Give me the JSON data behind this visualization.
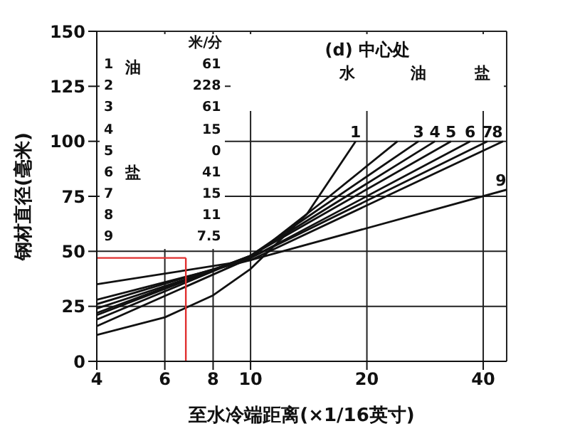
{
  "chart_data": {
    "type": "line",
    "xlabel": "至水冷端距离(×1/16英寸)",
    "ylabel": "钢材直径(毫米)",
    "log": "x",
    "xlim": [
      4,
      46
    ],
    "xticks": [
      4,
      6,
      8,
      10,
      20,
      40
    ],
    "ylim": [
      0,
      150
    ],
    "yticks": [
      0,
      25,
      50,
      75,
      100,
      125,
      150
    ],
    "grid": true,
    "legend": false,
    "marker": "none",
    "line_style": "solid",
    "annotations": [
      "(d) 中心处",
      "水",
      "油",
      "盐",
      "米/分",
      "油",
      "盐",
      "1",
      "2",
      "3",
      "4",
      "5",
      "6",
      "7",
      "8",
      "9",
      "61",
      "228",
      "61",
      "15",
      "0",
      "41",
      "15",
      "11",
      "7.5"
    ],
    "ref_lines": [
      {
        "axis": "y",
        "value": 47,
        "color": "#e03030"
      },
      {
        "axis": "x",
        "value": 6.8,
        "color": "#e03030"
      }
    ],
    "series": [
      {
        "name": "1",
        "color": "#111111",
        "x": [
          4,
          6,
          8,
          10,
          14,
          18.7
        ],
        "values": [
          12,
          20,
          30,
          42,
          67,
          100
        ]
      },
      {
        "color": "#111111",
        "x": [
          4,
          10,
          16,
          24
        ],
        "values": [
          16,
          47,
          75,
          100
        ]
      },
      {
        "name": "3",
        "color": "#111111",
        "x": [
          4,
          10,
          27.2
        ],
        "values": [
          19,
          48,
          100
        ]
      },
      {
        "name": "4",
        "color": "#111111",
        "x": [
          4,
          10,
          30
        ],
        "values": [
          21,
          48,
          100
        ]
      },
      {
        "name": "5",
        "color": "#111111",
        "x": [
          4,
          10,
          33
        ],
        "values": [
          22,
          48,
          100
        ]
      },
      {
        "name": "6",
        "color": "#111111",
        "x": [
          4,
          10,
          37
        ],
        "values": [
          24,
          47,
          100
        ]
      },
      {
        "name": "7",
        "color": "#111111",
        "x": [
          4,
          10,
          41
        ],
        "values": [
          26,
          47,
          100
        ]
      },
      {
        "name": "8",
        "color": "#111111",
        "x": [
          4,
          10,
          45
        ],
        "values": [
          28,
          46,
          100
        ]
      },
      {
        "name": "9",
        "color": "#111111",
        "x": [
          4,
          10,
          46
        ],
        "values": [
          35,
          46,
          78
        ]
      }
    ]
  }
}
